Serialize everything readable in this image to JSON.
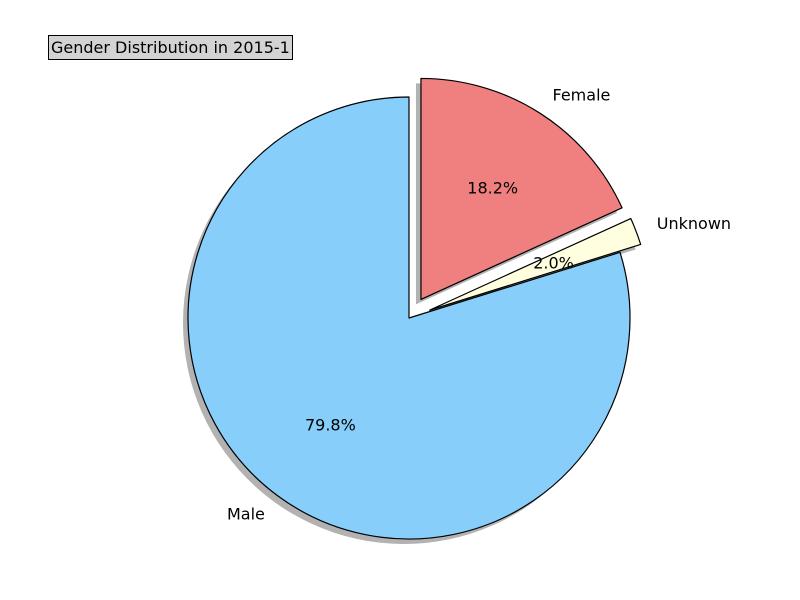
{
  "chart_data": {
    "type": "pie",
    "title": "Gender Distribution in 2015-1",
    "categories": [
      "Female",
      "Unknown",
      "Male"
    ],
    "values": [
      18.2,
      2.0,
      79.8
    ],
    "value_labels": [
      "18.2%",
      "2.0%",
      "79.8%"
    ],
    "colors": [
      "#f08080",
      "#ffffe0",
      "#87cefa"
    ],
    "exploded": [
      "Female",
      "Unknown"
    ],
    "shadow": true,
    "start_angle_deg": 90,
    "direction": "clockwise",
    "legend": "none"
  }
}
